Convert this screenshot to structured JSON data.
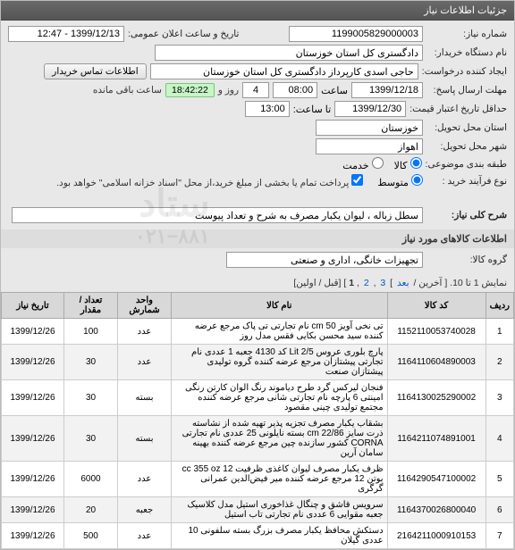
{
  "header": {
    "title": "جزئیات اطلاعات نیاز"
  },
  "form": {
    "need_no_lbl": "شماره نیاز:",
    "need_no": "1199005829000003",
    "announce_lbl": "تاریخ و ساعت اعلان عمومی:",
    "announce": "1399/12/13 - 12:47",
    "buyer_lbl": "نام دستگاه خریدار:",
    "buyer": "دادگستری کل استان خوزستان",
    "creator_lbl": "ایجاد کننده درخواست:",
    "creator": "حاجی اسدی کارپرداز دادگستری کل استان خوزستان",
    "contact_btn": "اطلاعات تماس خریدار",
    "deadline_lbl": "مهلت ارسال پاسخ:",
    "deadline_date": "1399/12/18",
    "hour_lbl": "ساعت",
    "deadline_time": "08:00",
    "days_left": "4",
    "days_txt": "روز و",
    "time_left": "18:42:22",
    "remain_txt": "ساعت باقی مانده",
    "validity_lbl": "حداقل تاریخ اعتبار قیمت:",
    "validity_date": "1399/12/30",
    "validity_hour_lbl": "تا ساعت:",
    "validity_time": "13:00",
    "province_lbl": "استان محل تحویل:",
    "province": "خوزستان",
    "city_lbl": "شهر محل تحویل:",
    "city": "اهواز",
    "budget_lbl": "طبقه بندی موضوعی:",
    "budget_goods": "کالا",
    "budget_service": "خدمت",
    "size_lbl": "نوع فرآیند خرید :",
    "size_med": "متوسط",
    "size_note": "پرداخت تمام یا بخشی از مبلغ خرید،از محل \"اسناد خزانه اسلامی\" خواهد بود."
  },
  "summary": {
    "title_lbl": "شرح کلی نیاز:",
    "title_val": "سطل زباله ، لیوان یکبار مصرف به شرح و تعداد پیوست"
  },
  "items_header": "اطلاعات کالاهای مورد نیاز",
  "group_lbl": "گروه کالا:",
  "group_val": "تجهیزات خانگی، اداری و صنعتی",
  "pager": {
    "prefix": "نمایش 1 تا 10. [ آخرین /",
    "next": "بعد",
    "p3": "3",
    "p2": "2",
    "p1": "1",
    "suffix": "] [قبل / اولین]"
  },
  "table": {
    "cols": [
      "ردیف",
      "کد کالا",
      "نام کالا",
      "واحد شمارش",
      "تعداد / مقدار",
      "تاریخ نیاز"
    ],
    "rows": [
      [
        "1",
        "1152110053740028",
        "تی نخی آویز cm 50 نام تجارتی تی پاک مرجع عرضه کننده سید محسن بکایی فقس مدل روز",
        "عدد",
        "100",
        "1399/12/26"
      ],
      [
        "2",
        "1164110604890003",
        "پارچ بلوری عروس Lit 2/5 کد 4130 جعبه 1 عددی نام تجارتی پیشتازان مرجع عرضه کننده گروه تولیدی پیشتازان صنعت",
        "عدد",
        "30",
        "1399/12/26"
      ],
      [
        "3",
        "1164130025290002",
        "فنجان لیرکس گرد طرح دیاموند رنگ الوان کارتن رنگی امینتی 6 پارچه نام تجارتی شانی مرجع عرضه کننده مجتمع تولیدی چینی مقصود",
        "بسته",
        "30",
        "1399/12/26"
      ],
      [
        "4",
        "1164211074891001",
        "بشقاب یکبار مصرف تجزیه پذیر تهیه شده از نشاسته ذرت سایز cm 22/86 بسته نایلونی 25 عددی نام تجارتی CORNA کشور سازنده چین مرجع عرضه کننده بهینه سامان آرین",
        "بسته",
        "30",
        "1399/12/26"
      ],
      [
        "5",
        "1164290547100002",
        "ظرف یکبار مصرف لیوان کاغذی ظرفیت cc 355 oz 12 بوتن 12 مرجع عرضه کننده میر فیض‌الدین عمرانی گرگری",
        "عدد",
        "6000",
        "1399/12/26"
      ],
      [
        "6",
        "1164370026800040",
        "سرویس قاشق و چنگال غذاخوری استیل مدل کلاسیک جعبه مقوایی 6 عددی نام تجارتی تاب استیل",
        "جعبه",
        "20",
        "1399/12/26"
      ],
      [
        "7",
        "2164211000910153",
        "دستکش محافظ یکبار مصرف بزرگ بسته سلفونی 10 عددی گیلان",
        "عدد",
        "500",
        "1399/12/26"
      ]
    ]
  },
  "wm1": "ستاد",
  "wm2": "۰۲۱−۸۸۱"
}
